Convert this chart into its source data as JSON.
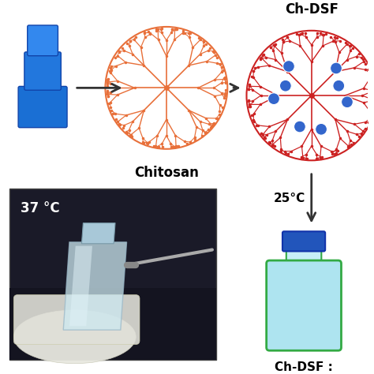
{
  "bg_color": "#ffffff",
  "label_chitosan": "Chitosan",
  "label_chdsf_top": "Ch-DSF",
  "label_chdsf_bottom": "Ch-DSF :",
  "label_temp_photo": "37 °C",
  "label_temp_mid": "25°C",
  "chitosan_color": "#e8703a",
  "chdsf_network_color": "#cc2222",
  "drug_color": "#3366cc",
  "arrow_color": "#333333",
  "vial_body_color": "#aee4f0",
  "vial_cap_color": "#2255bb",
  "vial_outline_color": "#33aa44",
  "photo_bg_color": "#1a1a28",
  "photo_dark_color": "#2a2a3c"
}
